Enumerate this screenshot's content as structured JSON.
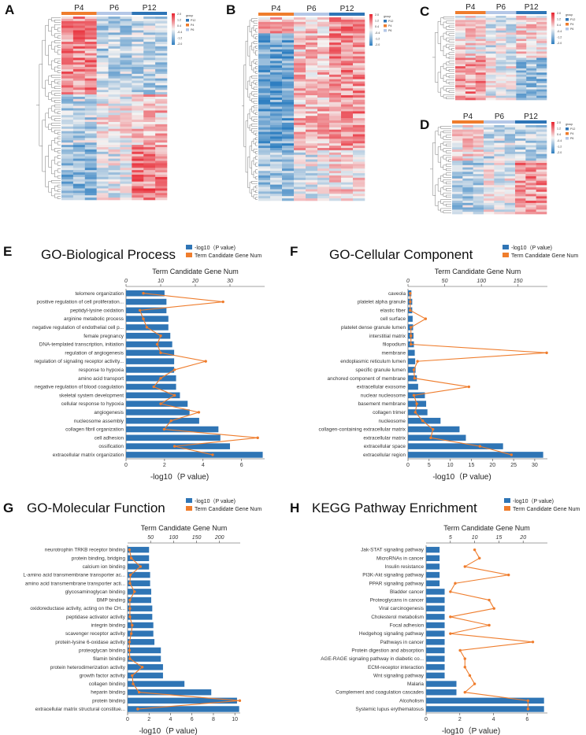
{
  "colors": {
    "bar": "#2f75b5",
    "line": "#ef7d2d",
    "hot": "#e8222e",
    "mid": "#f5f3f2",
    "cold": "#2f7fc1",
    "p4": "#ef7d2d",
    "p6": "#b4c7e7",
    "p12": "#2e75b6"
  },
  "heatmaps": [
    {
      "panel": "A",
      "groups": [
        "P4",
        "P6",
        "P12"
      ],
      "cols": 9,
      "rows": 80,
      "pattern": "A",
      "scale": [
        "2.0",
        "1.2",
        "0.4",
        "-0.4",
        "-1.2",
        "-2.0"
      ],
      "legend_title": "group",
      "legend_items": [
        "P12",
        "P4",
        "P6"
      ]
    },
    {
      "panel": "B",
      "groups": [
        "P4",
        "P6",
        "P12"
      ],
      "cols": 9,
      "rows": 80,
      "pattern": "B",
      "scale": [
        "2.0",
        "1.2",
        "0.4",
        "-0.4",
        "-1.2",
        "-2.0"
      ],
      "legend_title": "group",
      "legend_items": [
        "P12",
        "P4",
        "P6"
      ]
    },
    {
      "panel": "C",
      "groups": [
        "P4",
        "P6",
        "P12"
      ],
      "cols": 9,
      "rows": 40,
      "pattern": "C",
      "scale": [
        "2.0",
        "1.2",
        "0.4",
        "-0.4",
        "-1.2",
        "-2.0"
      ],
      "legend_title": "group",
      "legend_items": [
        "P12",
        "P4",
        "P6"
      ]
    },
    {
      "panel": "D",
      "groups": [
        "P4",
        "P6",
        "P12"
      ],
      "cols": 9,
      "rows": 40,
      "pattern": "D",
      "scale": [
        "2.0",
        "1.2",
        "0.4",
        "-0.4",
        "-1.2",
        "-2.0"
      ],
      "legend_title": "group",
      "legend_items": [
        "P12",
        "P4",
        "P6"
      ]
    }
  ],
  "chart_data": [
    {
      "panel": "E",
      "type": "bar",
      "title": "GO-Biological Process",
      "legend": [
        "-log10（P value)",
        "Term Candidate Gene Num"
      ],
      "top_axis_title": "Term Candidate Gene Num",
      "xlabel": "-log10（P value)",
      "xlim": [
        0,
        7.2
      ],
      "xticks": [
        0,
        2,
        4,
        6
      ],
      "top_lim": [
        0,
        40
      ],
      "top_ticks": [
        0,
        10,
        20,
        30
      ],
      "categories": [
        "telomere organization",
        "positive regulation of cell proliferation...",
        "peptidyl-lysine oxidation",
        "arginine metabolic process",
        "negative regulation of endothelial cell p...",
        "female pregnancy",
        "DNA-templated transcription, initiation",
        "regulation of angiogenesis",
        "regulation of signaling receptor activity...",
        "response to hypoxia",
        "amino acid transport",
        "negative regulation of blood coagulation",
        "skeletal system development",
        "cellular response to hypoxia",
        "angiogenesis",
        "nucleosome assembly",
        "collagen fibril organization",
        "cell adhesion",
        "ossification",
        "extracellular matrix organization"
      ],
      "values": [
        2.0,
        2.1,
        2.1,
        2.2,
        2.2,
        2.3,
        2.4,
        2.5,
        2.5,
        2.5,
        2.6,
        2.6,
        2.8,
        3.2,
        3.3,
        3.8,
        4.8,
        4.9,
        5.4,
        7.1
      ],
      "gene_num": [
        5,
        28,
        4,
        5,
        6,
        10,
        9,
        10,
        23,
        14,
        10,
        8,
        14,
        10,
        21,
        13,
        11,
        38,
        14,
        25
      ]
    },
    {
      "panel": "F",
      "type": "bar",
      "title": "GO-Cellular Component",
      "legend": [
        "-log10（P value)",
        "Term Candidate Gene Num"
      ],
      "top_axis_title": "Term Candidate Gene Num",
      "xlabel": "-log10（P value)",
      "xlim": [
        0,
        33
      ],
      "xticks": [
        0,
        5,
        10,
        15,
        20,
        25,
        30
      ],
      "top_lim": [
        0,
        190
      ],
      "top_ticks": [
        0,
        50,
        100,
        150
      ],
      "categories": [
        "caveola",
        "platelet alpha granule",
        "elastic fiber",
        "cell surface",
        "platelet dense granule lumen",
        "interstitial matrix",
        "filopodium",
        "membrane",
        "endoplasmic reticulum lumen",
        "specific granule lumen",
        "anchored component of membrane",
        "extracellular exosome",
        "nuclear nucleosome",
        "basement membrane",
        "collagen trimer",
        "nucleosome",
        "collagen-containing extracellular matrix",
        "extracellular matrix",
        "extracellular space",
        "extracellular region"
      ],
      "values": [
        0.8,
        1.0,
        1.0,
        1.1,
        1.2,
        1.3,
        1.4,
        1.6,
        1.7,
        1.8,
        2.1,
        2.4,
        4.0,
        4.3,
        4.6,
        7.7,
        12.2,
        13.7,
        22.5,
        32.0
      ],
      "gene_num": [
        3,
        3,
        3,
        24,
        4,
        4,
        4,
        189,
        13,
        8,
        9,
        83,
        8,
        12,
        10,
        20,
        34,
        31,
        98,
        141
      ]
    },
    {
      "panel": "G",
      "type": "bar",
      "title": "GO-Molecular Function",
      "legend": [
        "-log10（P value)",
        "Term Candidate Gene Num"
      ],
      "top_axis_title": "Term Candidate Gene Num",
      "xlabel": "-log10（P value)",
      "xlim": [
        0,
        10.5
      ],
      "xticks": [
        0,
        2,
        4,
        6,
        8,
        10
      ],
      "top_lim": [
        0,
        245
      ],
      "top_ticks": [
        50,
        100,
        150,
        200
      ],
      "categories": [
        "neurotrophin TRKB receptor binding",
        "protein binding, bridging",
        "calcium ion binding",
        "L-amino acid transmembrane transporter ac...",
        "amino acid transmembrane transporter acti...",
        "glycosaminoglycan binding",
        "BMP binding",
        "oxidoreductase activity, acting on the CH...",
        "peptidase activator activity",
        "integrin binding",
        "scavenger receptor activity",
        "protein-lysine 6-oxidase activity",
        "proteoglycan binding",
        "filamin binding",
        "protein heterodimerization activity",
        "growth factor activity",
        "collagen binding",
        "heparin binding",
        "protein binding",
        "extracellular matrix structural constitue..."
      ],
      "values": [
        2.0,
        2.0,
        2.0,
        2.1,
        2.1,
        2.2,
        2.2,
        2.3,
        2.3,
        2.4,
        2.4,
        2.5,
        3.1,
        3.1,
        3.3,
        3.3,
        5.3,
        7.8,
        10.2,
        10.4
      ],
      "gene_num": [
        4,
        8,
        28,
        6,
        5,
        15,
        5,
        5,
        5,
        10,
        8,
        4,
        4,
        5,
        32,
        10,
        12,
        25,
        244,
        22
      ]
    },
    {
      "panel": "H",
      "type": "bar",
      "title": "KEGG Pathway Enrichment",
      "legend": [
        "-log10（P value)",
        "Term Candidate Gene Num"
      ],
      "top_axis_title": "Term Candidate Gene Num",
      "xlabel": "-log10（P value)",
      "xlim": [
        0,
        7.2
      ],
      "xticks": [
        0,
        2,
        4,
        6
      ],
      "top_lim": [
        0,
        25
      ],
      "top_ticks": [
        5,
        10,
        15,
        20
      ],
      "categories": [
        "Jak-STAT signaling pathway",
        "MicroRNAs in cancer",
        "Insulin resistance",
        "PI3K-Akt signaling pathway",
        "PPAR signaling pathway",
        "Bladder cancer",
        "Proteoglycans in cancer",
        "Viral carcinogenesis",
        "Cholesterol metabolism",
        "Focal adhesion",
        "Hedgehog signaling pathway",
        "Pathways in cancer",
        "Protein digestion and absorption",
        "AGE-RAGE signaling pathway in diabetic co...",
        "ECM-receptor interaction",
        "Wnt signaling pathway",
        "Malaria",
        "Complement and coagulation cascades",
        "Alcoholism",
        "Systemic lupus erythematosus"
      ],
      "values": [
        0.8,
        0.8,
        0.8,
        0.8,
        0.8,
        1.1,
        1.1,
        1.1,
        1.1,
        1.1,
        1.1,
        1.1,
        1.1,
        1.1,
        1.1,
        1.1,
        1.8,
        1.8,
        7.0,
        7.0
      ],
      "gene_num": [
        10,
        11,
        8,
        17,
        6,
        5,
        13,
        14,
        5,
        13,
        5,
        22,
        7,
        8,
        8,
        9,
        10,
        8,
        21,
        21
      ]
    }
  ]
}
